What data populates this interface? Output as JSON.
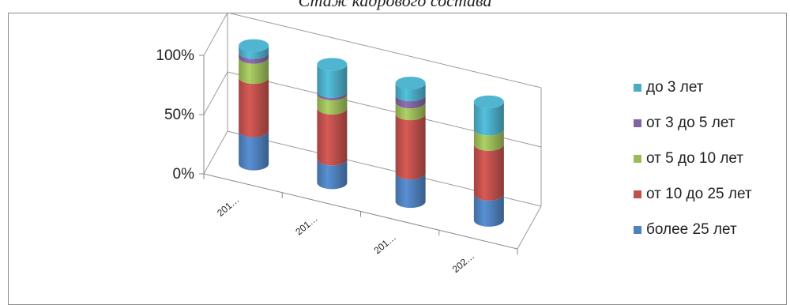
{
  "title": "Стаж кадрового состава",
  "chart_data": {
    "type": "bar",
    "subtype": "stacked-100-cylinder-3d",
    "title": "Стаж кадрового состава",
    "categories": [
      "201…",
      "201…",
      "201…",
      "202…"
    ],
    "y_ticks": [
      "0%",
      "50%",
      "100%"
    ],
    "ylim": [
      0,
      100
    ],
    "grid": true,
    "legend_position": "right",
    "series": [
      {
        "name": "более 25 лет",
        "color": "#4f81bd",
        "values": [
          28,
          20,
          24,
          22
        ]
      },
      {
        "name": "от 10 до 25 лет",
        "color": "#c0504d",
        "values": [
          45,
          43,
          50,
          42
        ]
      },
      {
        "name": "от 5 до 10 лет",
        "color": "#9bbb59",
        "values": [
          17,
          12,
          10,
          13
        ]
      },
      {
        "name": "от 3 до 5 лет",
        "color": "#8064a2",
        "values": [
          4,
          2,
          6,
          0
        ]
      },
      {
        "name": "до 3 лет",
        "color": "#4bacc6",
        "values": [
          6,
          23,
          10,
          23
        ]
      }
    ]
  }
}
